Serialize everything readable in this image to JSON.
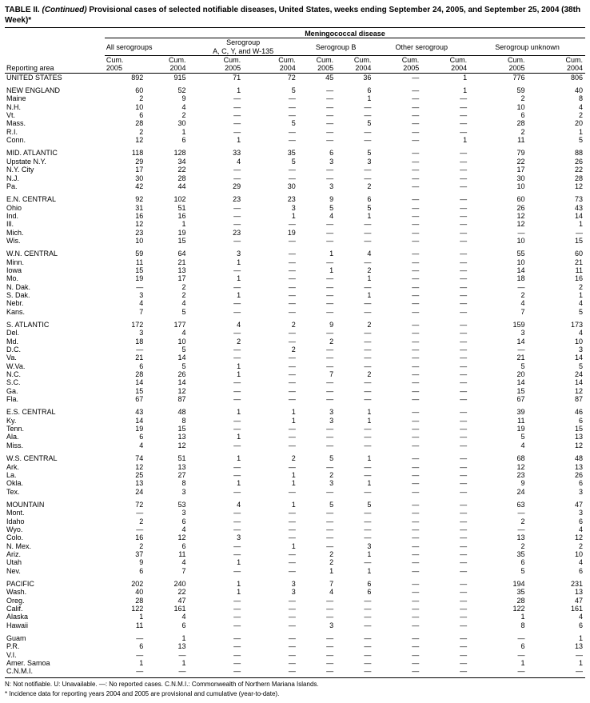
{
  "title_prefix": "TABLE II. ",
  "title_cont": "(Continued)",
  "title_rest": " Provisional cases of selected notifiable diseases, United States, weeks ending September 24, 2005, and September 25, 2004 (38th Week)*",
  "disease_header": "Meningococcal disease",
  "group_headers": [
    "All serogroups",
    "Serogroup\nA, C, Y, and W-135",
    "Serogroup B",
    "Other serogroup",
    "Serogroup unknown"
  ],
  "col_labels": [
    "Cum.\n2005",
    "Cum.\n2004"
  ],
  "reporting_area": "Reporting area",
  "rows": [
    {
      "n": "UNITED STATES",
      "v": [
        "892",
        "915",
        "71",
        "72",
        "45",
        "36",
        "—",
        "1",
        "776",
        "806"
      ]
    },
    {
      "spacer": true
    },
    {
      "n": "NEW ENGLAND",
      "v": [
        "60",
        "52",
        "1",
        "5",
        "—",
        "6",
        "—",
        "1",
        "59",
        "40"
      ]
    },
    {
      "n": "Maine",
      "v": [
        "2",
        "9",
        "—",
        "—",
        "—",
        "1",
        "—",
        "—",
        "2",
        "8"
      ]
    },
    {
      "n": "N.H.",
      "v": [
        "10",
        "4",
        "—",
        "—",
        "—",
        "—",
        "—",
        "—",
        "10",
        "4"
      ]
    },
    {
      "n": "Vt.",
      "v": [
        "6",
        "2",
        "—",
        "—",
        "—",
        "—",
        "—",
        "—",
        "6",
        "2"
      ]
    },
    {
      "n": "Mass.",
      "v": [
        "28",
        "30",
        "—",
        "5",
        "—",
        "5",
        "—",
        "—",
        "28",
        "20"
      ]
    },
    {
      "n": "R.I.",
      "v": [
        "2",
        "1",
        "—",
        "—",
        "—",
        "—",
        "—",
        "—",
        "2",
        "1"
      ]
    },
    {
      "n": "Conn.",
      "v": [
        "12",
        "6",
        "1",
        "—",
        "—",
        "—",
        "—",
        "1",
        "11",
        "5"
      ]
    },
    {
      "spacer": true
    },
    {
      "n": "MID. ATLANTIC",
      "v": [
        "118",
        "128",
        "33",
        "35",
        "6",
        "5",
        "—",
        "—",
        "79",
        "88"
      ]
    },
    {
      "n": "Upstate N.Y.",
      "v": [
        "29",
        "34",
        "4",
        "5",
        "3",
        "3",
        "—",
        "—",
        "22",
        "26"
      ]
    },
    {
      "n": "N.Y. City",
      "v": [
        "17",
        "22",
        "—",
        "—",
        "—",
        "—",
        "—",
        "—",
        "17",
        "22"
      ]
    },
    {
      "n": "N.J.",
      "v": [
        "30",
        "28",
        "—",
        "—",
        "—",
        "—",
        "—",
        "—",
        "30",
        "28"
      ]
    },
    {
      "n": "Pa.",
      "v": [
        "42",
        "44",
        "29",
        "30",
        "3",
        "2",
        "—",
        "—",
        "10",
        "12"
      ]
    },
    {
      "spacer": true
    },
    {
      "n": "E.N. CENTRAL",
      "v": [
        "92",
        "102",
        "23",
        "23",
        "9",
        "6",
        "—",
        "—",
        "60",
        "73"
      ]
    },
    {
      "n": "Ohio",
      "v": [
        "31",
        "51",
        "—",
        "3",
        "5",
        "5",
        "—",
        "—",
        "26",
        "43"
      ]
    },
    {
      "n": "Ind.",
      "v": [
        "16",
        "16",
        "—",
        "1",
        "4",
        "1",
        "—",
        "—",
        "12",
        "14"
      ]
    },
    {
      "n": "Ill.",
      "v": [
        "12",
        "1",
        "—",
        "—",
        "—",
        "—",
        "—",
        "—",
        "12",
        "1"
      ]
    },
    {
      "n": "Mich.",
      "v": [
        "23",
        "19",
        "23",
        "19",
        "—",
        "—",
        "—",
        "—",
        "—",
        "—"
      ]
    },
    {
      "n": "Wis.",
      "v": [
        "10",
        "15",
        "—",
        "—",
        "—",
        "—",
        "—",
        "—",
        "10",
        "15"
      ]
    },
    {
      "spacer": true
    },
    {
      "n": "W.N. CENTRAL",
      "v": [
        "59",
        "64",
        "3",
        "—",
        "1",
        "4",
        "—",
        "—",
        "55",
        "60"
      ]
    },
    {
      "n": "Minn.",
      "v": [
        "11",
        "21",
        "1",
        "—",
        "—",
        "—",
        "—",
        "—",
        "10",
        "21"
      ]
    },
    {
      "n": "Iowa",
      "v": [
        "15",
        "13",
        "—",
        "—",
        "1",
        "2",
        "—",
        "—",
        "14",
        "11"
      ]
    },
    {
      "n": "Mo.",
      "v": [
        "19",
        "17",
        "1",
        "—",
        "—",
        "1",
        "—",
        "—",
        "18",
        "16"
      ]
    },
    {
      "n": "N. Dak.",
      "v": [
        "—",
        "2",
        "—",
        "—",
        "—",
        "—",
        "—",
        "—",
        "—",
        "2"
      ]
    },
    {
      "n": "S. Dak.",
      "v": [
        "3",
        "2",
        "1",
        "—",
        "—",
        "1",
        "—",
        "—",
        "2",
        "1"
      ]
    },
    {
      "n": "Nebr.",
      "v": [
        "4",
        "4",
        "—",
        "—",
        "—",
        "—",
        "—",
        "—",
        "4",
        "4"
      ]
    },
    {
      "n": "Kans.",
      "v": [
        "7",
        "5",
        "—",
        "—",
        "—",
        "—",
        "—",
        "—",
        "7",
        "5"
      ]
    },
    {
      "spacer": true
    },
    {
      "n": "S. ATLANTIC",
      "v": [
        "172",
        "177",
        "4",
        "2",
        "9",
        "2",
        "—",
        "—",
        "159",
        "173"
      ]
    },
    {
      "n": "Del.",
      "v": [
        "3",
        "4",
        "—",
        "—",
        "—",
        "—",
        "—",
        "—",
        "3",
        "4"
      ]
    },
    {
      "n": "Md.",
      "v": [
        "18",
        "10",
        "2",
        "—",
        "2",
        "—",
        "—",
        "—",
        "14",
        "10"
      ]
    },
    {
      "n": "D.C.",
      "v": [
        "—",
        "5",
        "—",
        "2",
        "—",
        "—",
        "—",
        "—",
        "—",
        "3"
      ]
    },
    {
      "n": "Va.",
      "v": [
        "21",
        "14",
        "—",
        "—",
        "—",
        "—",
        "—",
        "—",
        "21",
        "14"
      ]
    },
    {
      "n": "W.Va.",
      "v": [
        "6",
        "5",
        "1",
        "—",
        "—",
        "—",
        "—",
        "—",
        "5",
        "5"
      ]
    },
    {
      "n": "N.C.",
      "v": [
        "28",
        "26",
        "1",
        "—",
        "7",
        "2",
        "—",
        "—",
        "20",
        "24"
      ]
    },
    {
      "n": "S.C.",
      "v": [
        "14",
        "14",
        "—",
        "—",
        "—",
        "—",
        "—",
        "—",
        "14",
        "14"
      ]
    },
    {
      "n": "Ga.",
      "v": [
        "15",
        "12",
        "—",
        "—",
        "—",
        "—",
        "—",
        "—",
        "15",
        "12"
      ]
    },
    {
      "n": "Fla.",
      "v": [
        "67",
        "87",
        "—",
        "—",
        "—",
        "—",
        "—",
        "—",
        "67",
        "87"
      ]
    },
    {
      "spacer": true
    },
    {
      "n": "E.S. CENTRAL",
      "v": [
        "43",
        "48",
        "1",
        "1",
        "3",
        "1",
        "—",
        "—",
        "39",
        "46"
      ]
    },
    {
      "n": "Ky.",
      "v": [
        "14",
        "8",
        "—",
        "1",
        "3",
        "1",
        "—",
        "—",
        "11",
        "6"
      ]
    },
    {
      "n": "Tenn.",
      "v": [
        "19",
        "15",
        "—",
        "—",
        "—",
        "—",
        "—",
        "—",
        "19",
        "15"
      ]
    },
    {
      "n": "Ala.",
      "v": [
        "6",
        "13",
        "1",
        "—",
        "—",
        "—",
        "—",
        "—",
        "5",
        "13"
      ]
    },
    {
      "n": "Miss.",
      "v": [
        "4",
        "12",
        "—",
        "—",
        "—",
        "—",
        "—",
        "—",
        "4",
        "12"
      ]
    },
    {
      "spacer": true
    },
    {
      "n": "W.S. CENTRAL",
      "v": [
        "74",
        "51",
        "1",
        "2",
        "5",
        "1",
        "—",
        "—",
        "68",
        "48"
      ]
    },
    {
      "n": "Ark.",
      "v": [
        "12",
        "13",
        "—",
        "—",
        "—",
        "—",
        "—",
        "—",
        "12",
        "13"
      ]
    },
    {
      "n": "La.",
      "v": [
        "25",
        "27",
        "—",
        "1",
        "2",
        "—",
        "—",
        "—",
        "23",
        "26"
      ]
    },
    {
      "n": "Okla.",
      "v": [
        "13",
        "8",
        "1",
        "1",
        "3",
        "1",
        "—",
        "—",
        "9",
        "6"
      ]
    },
    {
      "n": "Tex.",
      "v": [
        "24",
        "3",
        "—",
        "—",
        "—",
        "—",
        "—",
        "—",
        "24",
        "3"
      ]
    },
    {
      "spacer": true
    },
    {
      "n": "MOUNTAIN",
      "v": [
        "72",
        "53",
        "4",
        "1",
        "5",
        "5",
        "—",
        "—",
        "63",
        "47"
      ]
    },
    {
      "n": "Mont.",
      "v": [
        "—",
        "3",
        "—",
        "—",
        "—",
        "—",
        "—",
        "—",
        "—",
        "3"
      ]
    },
    {
      "n": "Idaho",
      "v": [
        "2",
        "6",
        "—",
        "—",
        "—",
        "—",
        "—",
        "—",
        "2",
        "6"
      ]
    },
    {
      "n": "Wyo.",
      "v": [
        "—",
        "4",
        "—",
        "—",
        "—",
        "—",
        "—",
        "—",
        "—",
        "4"
      ]
    },
    {
      "n": "Colo.",
      "v": [
        "16",
        "12",
        "3",
        "—",
        "—",
        "—",
        "—",
        "—",
        "13",
        "12"
      ]
    },
    {
      "n": "N. Mex.",
      "v": [
        "2",
        "6",
        "—",
        "1",
        "—",
        "3",
        "—",
        "—",
        "2",
        "2"
      ]
    },
    {
      "n": "Ariz.",
      "v": [
        "37",
        "11",
        "—",
        "—",
        "2",
        "1",
        "—",
        "—",
        "35",
        "10"
      ]
    },
    {
      "n": "Utah",
      "v": [
        "9",
        "4",
        "1",
        "—",
        "2",
        "—",
        "—",
        "—",
        "6",
        "4"
      ]
    },
    {
      "n": "Nev.",
      "v": [
        "6",
        "7",
        "—",
        "—",
        "1",
        "1",
        "—",
        "—",
        "5",
        "6"
      ]
    },
    {
      "spacer": true
    },
    {
      "n": "PACIFIC",
      "v": [
        "202",
        "240",
        "1",
        "3",
        "7",
        "6",
        "—",
        "—",
        "194",
        "231"
      ]
    },
    {
      "n": "Wash.",
      "v": [
        "40",
        "22",
        "1",
        "3",
        "4",
        "6",
        "—",
        "—",
        "35",
        "13"
      ]
    },
    {
      "n": "Oreg.",
      "v": [
        "28",
        "47",
        "—",
        "—",
        "—",
        "—",
        "—",
        "—",
        "28",
        "47"
      ]
    },
    {
      "n": "Calif.",
      "v": [
        "122",
        "161",
        "—",
        "—",
        "—",
        "—",
        "—",
        "—",
        "122",
        "161"
      ]
    },
    {
      "n": "Alaska",
      "v": [
        "1",
        "4",
        "—",
        "—",
        "—",
        "—",
        "—",
        "—",
        "1",
        "4"
      ]
    },
    {
      "n": "Hawaii",
      "v": [
        "11",
        "6",
        "—",
        "—",
        "3",
        "—",
        "—",
        "—",
        "8",
        "6"
      ]
    },
    {
      "spacer": true
    },
    {
      "n": "Guam",
      "v": [
        "—",
        "1",
        "—",
        "—",
        "—",
        "—",
        "—",
        "—",
        "—",
        "1"
      ]
    },
    {
      "n": "P.R.",
      "v": [
        "6",
        "13",
        "—",
        "—",
        "—",
        "—",
        "—",
        "—",
        "6",
        "13"
      ]
    },
    {
      "n": "V.I.",
      "v": [
        "—",
        "—",
        "—",
        "—",
        "—",
        "—",
        "—",
        "—",
        "—",
        "—"
      ]
    },
    {
      "n": "Amer. Samoa",
      "v": [
        "1",
        "1",
        "—",
        "—",
        "—",
        "—",
        "—",
        "—",
        "1",
        "1"
      ]
    },
    {
      "n": "C.N.M.I.",
      "v": [
        "—",
        "—",
        "—",
        "—",
        "—",
        "—",
        "—",
        "—",
        "—",
        "—"
      ]
    }
  ],
  "footnote1": "N: Not notifiable.        U: Unavailable.            —: No reported cases.                 C.N.M.I.: Commonwealth of Northern Mariana Islands.",
  "footnote2": "* Incidence data for reporting years 2004 and 2005 are provisional and cumulative (year-to-date)."
}
